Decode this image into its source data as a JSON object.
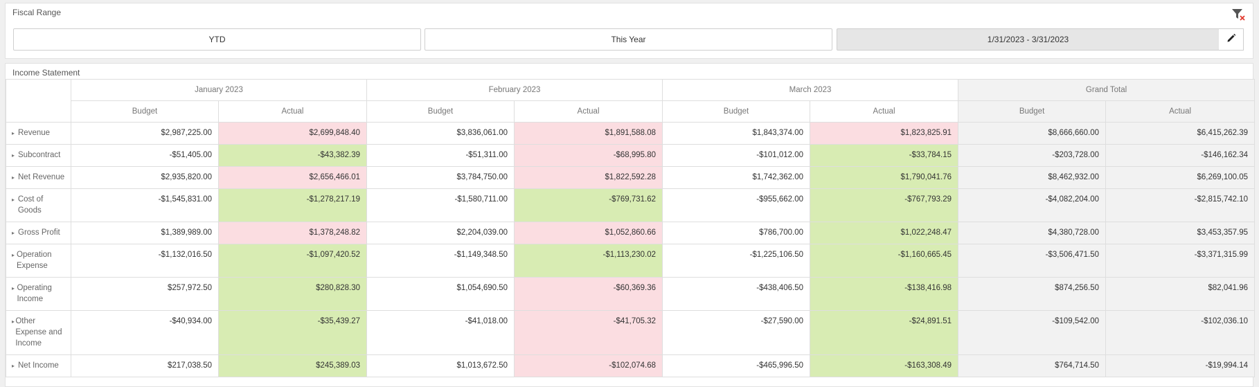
{
  "filter": {
    "title": "Fiscal Range",
    "buttons": [
      {
        "label": "YTD",
        "selected": false
      },
      {
        "label": "This Year",
        "selected": false
      },
      {
        "label": "1/31/2023 - 3/31/2023",
        "selected": true
      }
    ],
    "clear_icon": "filter-clear-icon",
    "edit_icon": "pencil-icon"
  },
  "income_statement": {
    "title": "Income Statement",
    "periods": [
      "January 2023",
      "February 2023",
      "March 2023",
      "Grand Total"
    ],
    "measures": [
      "Budget",
      "Actual"
    ],
    "colors": {
      "over": "#fbdde1",
      "under": "#d8ecb3",
      "total_bg": "#f2f2f2"
    },
    "rows": [
      {
        "label": "Revenue",
        "values": [
          "$2,987,225.00",
          "$2,699,848.40",
          "$3,836,061.00",
          "$1,891,588.08",
          "$1,843,374.00",
          "$1,823,825.91",
          "$8,666,660.00",
          "$6,415,262.39"
        ],
        "status": [
          "red",
          "red",
          "red"
        ]
      },
      {
        "label": "Subcontract",
        "values": [
          "-$51,405.00",
          "-$43,382.39",
          "-$51,311.00",
          "-$68,995.80",
          "-$101,012.00",
          "-$33,784.15",
          "-$203,728.00",
          "-$146,162.34"
        ],
        "status": [
          "green",
          "red",
          "green"
        ]
      },
      {
        "label": "Net Revenue",
        "values": [
          "$2,935,820.00",
          "$2,656,466.01",
          "$3,784,750.00",
          "$1,822,592.28",
          "$1,742,362.00",
          "$1,790,041.76",
          "$8,462,932.00",
          "$6,269,100.05"
        ],
        "status": [
          "red",
          "red",
          "green"
        ]
      },
      {
        "label": "Cost of Goods",
        "values": [
          "-$1,545,831.00",
          "-$1,278,217.19",
          "-$1,580,711.00",
          "-$769,731.62",
          "-$955,662.00",
          "-$767,793.29",
          "-$4,082,204.00",
          "-$2,815,742.10"
        ],
        "status": [
          "green",
          "green",
          "green"
        ]
      },
      {
        "label": "Gross Profit",
        "values": [
          "$1,389,989.00",
          "$1,378,248.82",
          "$2,204,039.00",
          "$1,052,860.66",
          "$786,700.00",
          "$1,022,248.47",
          "$4,380,728.00",
          "$3,453,357.95"
        ],
        "status": [
          "red",
          "red",
          "green"
        ]
      },
      {
        "label": "Operation Expense",
        "values": [
          "-$1,132,016.50",
          "-$1,097,420.52",
          "-$1,149,348.50",
          "-$1,113,230.02",
          "-$1,225,106.50",
          "-$1,160,665.45",
          "-$3,506,471.50",
          "-$3,371,315.99"
        ],
        "status": [
          "green",
          "green",
          "green"
        ]
      },
      {
        "label": "Operating Income",
        "values": [
          "$257,972.50",
          "$280,828.30",
          "$1,054,690.50",
          "-$60,369.36",
          "-$438,406.50",
          "-$138,416.98",
          "$874,256.50",
          "$82,041.96"
        ],
        "status": [
          "green",
          "red",
          "green"
        ]
      },
      {
        "label": "Other Expense and Income",
        "values": [
          "-$40,934.00",
          "-$35,439.27",
          "-$41,018.00",
          "-$41,705.32",
          "-$27,590.00",
          "-$24,891.51",
          "-$109,542.00",
          "-$102,036.10"
        ],
        "status": [
          "green",
          "red",
          "green"
        ]
      },
      {
        "label": "Net Income",
        "values": [
          "$217,038.50",
          "$245,389.03",
          "$1,013,672.50",
          "-$102,074.68",
          "-$465,996.50",
          "-$163,308.49",
          "$764,714.50",
          "-$19,994.14"
        ],
        "status": [
          "green",
          "red",
          "green"
        ]
      }
    ]
  }
}
